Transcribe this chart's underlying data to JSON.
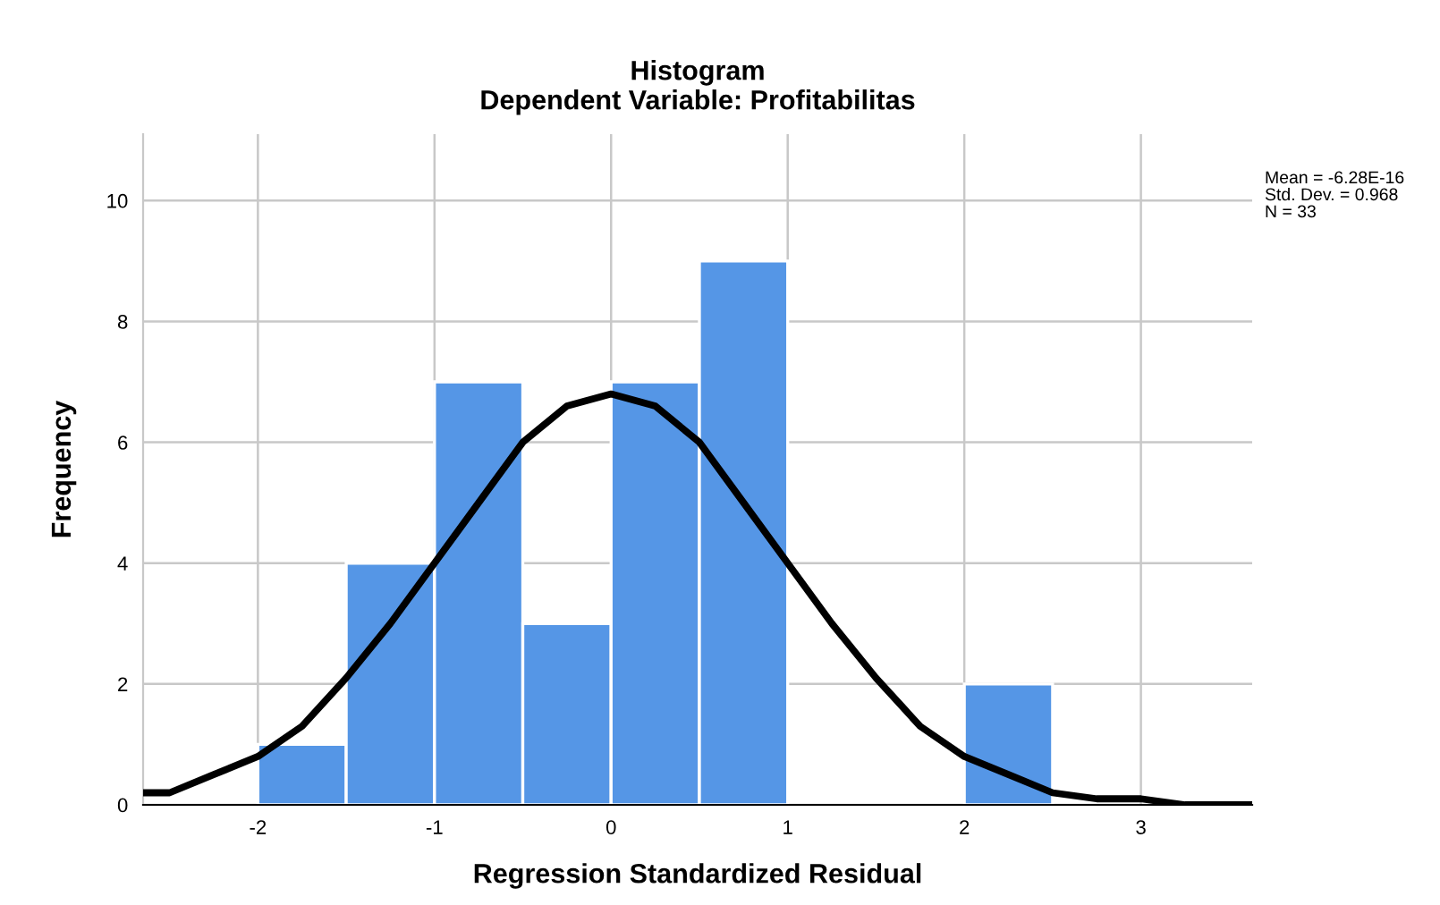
{
  "chart_data": {
    "type": "histogram",
    "title": "Histogram\nDependent Variable: Profitabilitas",
    "xlabel": "Regression Standardized Residual",
    "ylabel": "Frequency",
    "bins": [
      -2,
      -1.5,
      -1,
      -0.5,
      0,
      0.5,
      1,
      1.5,
      2,
      2.5
    ],
    "values": [
      1,
      4,
      7,
      3,
      7,
      9,
      0,
      0,
      2
    ],
    "color": "#5596e6",
    "series": [
      {
        "type": "line",
        "color": "#000000",
        "x": [
          -2.65,
          -2.5,
          -2.25,
          -2,
          -1.75,
          -1.5,
          -1.25,
          -1,
          -0.75,
          -0.5,
          -0.25,
          0,
          0.25,
          0.5,
          0.75,
          1,
          1.25,
          1.5,
          1.75,
          2,
          2.25,
          2.5,
          2.75,
          3,
          3.25,
          3.5,
          3.63
        ],
        "values": [
          0.2,
          0.2,
          0.5,
          0.8,
          1.3,
          2.1,
          3.0,
          4.0,
          5.0,
          6.0,
          6.6,
          6.8,
          6.6,
          6.0,
          5.0,
          4.0,
          3.0,
          2.1,
          1.3,
          0.8,
          0.5,
          0.2,
          0.1,
          0.1,
          0.0,
          0.0,
          0.0
        ]
      }
    ],
    "xlim": [
      -2.65,
      3.63
    ],
    "ylim": [
      0,
      11.1
    ],
    "xticks": [
      -2,
      -1,
      0,
      1,
      2,
      3
    ],
    "yticks": [
      0,
      2,
      4,
      6,
      8,
      10
    ],
    "grid": true,
    "annotations": [
      "Mean = -6.28E-16",
      "Std. Dev. = 0.968",
      "N = 33"
    ]
  }
}
